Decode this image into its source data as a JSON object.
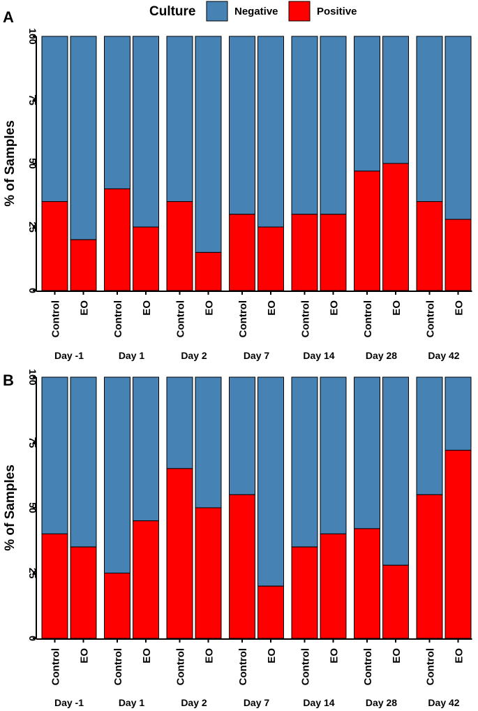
{
  "colors": {
    "negative": "#4682b4",
    "positive": "#ff0000"
  },
  "legend": {
    "title": "Culture",
    "negative_label": "Negative",
    "positive_label": "Positive"
  },
  "chart_data": [
    {
      "panel": "A",
      "type": "bar",
      "stacked": true,
      "ylabel": "% of Samples",
      "ylim": [
        0,
        100
      ],
      "yticks": [
        0,
        25,
        50,
        75,
        100
      ],
      "days": [
        "Day -1",
        "Day 1",
        "Day 2",
        "Day 7",
        "Day 14",
        "Day 28",
        "Day 42"
      ],
      "groups": [
        "Control",
        "EO"
      ],
      "series": [
        {
          "name": "Positive",
          "values": [
            [
              35,
              20
            ],
            [
              40,
              25
            ],
            [
              35,
              15
            ],
            [
              30,
              25
            ],
            [
              30,
              30
            ],
            [
              47,
              50
            ],
            [
              35,
              28
            ]
          ]
        },
        {
          "name": "Negative",
          "values": [
            [
              65,
              80
            ],
            [
              60,
              75
            ],
            [
              65,
              85
            ],
            [
              70,
              75
            ],
            [
              70,
              70
            ],
            [
              53,
              50
            ],
            [
              65,
              72
            ]
          ]
        }
      ]
    },
    {
      "panel": "B",
      "type": "bar",
      "stacked": true,
      "ylabel": "% of Samples",
      "ylim": [
        0,
        100
      ],
      "yticks": [
        0,
        25,
        50,
        75,
        100
      ],
      "days": [
        "Day -1",
        "Day 1",
        "Day 2",
        "Day 7",
        "Day 14",
        "Day 28",
        "Day 42"
      ],
      "groups": [
        "Control",
        "EO"
      ],
      "series": [
        {
          "name": "Positive",
          "values": [
            [
              40,
              35
            ],
            [
              25,
              45
            ],
            [
              65,
              50
            ],
            [
              55,
              20
            ],
            [
              35,
              40
            ],
            [
              42,
              28
            ],
            [
              55,
              72
            ]
          ]
        },
        {
          "name": "Negative",
          "values": [
            [
              60,
              65
            ],
            [
              75,
              55
            ],
            [
              35,
              50
            ],
            [
              45,
              80
            ],
            [
              65,
              60
            ],
            [
              58,
              72
            ],
            [
              45,
              28
            ]
          ]
        }
      ]
    }
  ]
}
